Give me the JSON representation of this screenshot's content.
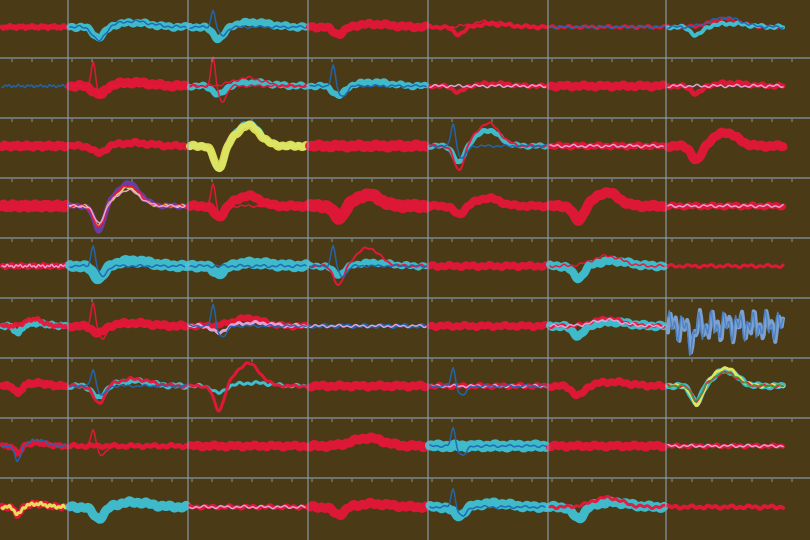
{
  "colors": {
    "background": "#4a3b16",
    "grid_line": "#8fa6bf",
    "tick": "#9fb4c9"
  },
  "grid": {
    "columns": 7,
    "rows": 9
  },
  "cells": [
    [
      {
        "p": [
          {
            "c": "#e8163a",
            "s": "flat",
            "a": 0.2,
            "w": 5
          },
          {
            "c": "#e8163a",
            "s": "flat",
            "a": 0.15,
            "w": 1.5
          }
        ]
      },
      {
        "p": [
          {
            "c": "#3ec5db",
            "s": "dip",
            "a": 0.45,
            "w": 7
          },
          {
            "c": "#1f66b3",
            "s": "dip",
            "a": 0.6,
            "w": 1.5
          }
        ]
      },
      {
        "p": [
          {
            "c": "#3ec5db",
            "s": "dip",
            "a": 0.5,
            "w": 7
          },
          {
            "c": "#1f66b3",
            "s": "spike",
            "a": 0.6,
            "w": 1.5
          }
        ]
      },
      {
        "p": [
          {
            "c": "#e8163a",
            "s": "dip",
            "a": 0.3,
            "w": 8
          }
        ]
      },
      {
        "p": [
          {
            "c": "#e8163a",
            "s": "dip",
            "a": 0.3,
            "w": 4
          },
          {
            "c": "#e8163a",
            "s": "hump",
            "a": 0.3,
            "w": 1.5
          }
        ]
      },
      {
        "p": [
          {
            "c": "#e8163a",
            "s": "flat",
            "a": 0.2,
            "w": 3
          },
          {
            "c": "#1f66b3",
            "s": "flat",
            "a": 0.15,
            "w": 1.5
          }
        ]
      },
      {
        "p": [
          {
            "c": "#e8163a",
            "s": "hump",
            "a": 0.4,
            "w": 3
          },
          {
            "c": "#3ec5db",
            "s": "dip",
            "a": 0.35,
            "w": 4
          },
          {
            "c": "#1f66b3",
            "s": "hump",
            "a": 0.5,
            "w": 1.5
          }
        ]
      }
    ],
    [
      {
        "p": [
          {
            "c": "#1f66b3",
            "s": "flat",
            "a": 0.2,
            "w": 1.5
          }
        ]
      },
      {
        "p": [
          {
            "c": "#e8163a",
            "s": "dip",
            "a": 0.35,
            "w": 9
          },
          {
            "c": "#e8163a",
            "s": "spike",
            "a": 0.8,
            "w": 1.5
          }
        ]
      },
      {
        "p": [
          {
            "c": "#3ec5db",
            "s": "dip",
            "a": 0.35,
            "w": 6
          },
          {
            "c": "#e8163a",
            "s": "spike",
            "a": 1.0,
            "w": 1.5
          },
          {
            "c": "#e8163a",
            "s": "hump",
            "a": 0.4,
            "w": 1.5
          }
        ]
      },
      {
        "p": [
          {
            "c": "#3ec5db",
            "s": "dip",
            "a": 0.4,
            "w": 6
          },
          {
            "c": "#1f66b3",
            "s": "spike",
            "a": 0.7,
            "w": 1.5
          }
        ]
      },
      {
        "p": [
          {
            "c": "#e8163a",
            "s": "dip",
            "a": 0.25,
            "w": 4
          },
          {
            "c": "#e6a6e0",
            "s": "flat",
            "a": 0.15,
            "w": 1.5
          }
        ]
      },
      {
        "p": [
          {
            "c": "#e8163a",
            "s": "flat",
            "a": 0.2,
            "w": 8
          }
        ]
      },
      {
        "p": [
          {
            "c": "#e8163a",
            "s": "dip",
            "a": 0.3,
            "w": 5
          },
          {
            "c": "#e6a6e0",
            "s": "flat",
            "a": 0.15,
            "w": 1.5
          }
        ]
      }
    ],
    [
      {
        "p": [
          {
            "c": "#e8163a",
            "s": "flat",
            "a": 0.2,
            "w": 8
          }
        ]
      },
      {
        "p": [
          {
            "c": "#e8163a",
            "s": "dip",
            "a": 0.3,
            "w": 7
          }
        ]
      },
      {
        "p": [
          {
            "c": "#3ec5db",
            "s": "wave",
            "a": 1.0,
            "w": 6
          },
          {
            "c": "#e8e85a",
            "s": "wave",
            "a": 0.9,
            "w": 8
          }
        ]
      },
      {
        "p": [
          {
            "c": "#e8163a",
            "s": "flat",
            "a": 0.25,
            "w": 10
          }
        ]
      },
      {
        "p": [
          {
            "c": "#3ec5db",
            "s": "wave",
            "a": 0.7,
            "w": 5
          },
          {
            "c": "#e8163a",
            "s": "wave",
            "a": 1.0,
            "w": 2
          },
          {
            "c": "#1f66b3",
            "s": "spike",
            "a": 0.8,
            "w": 1.5
          }
        ]
      },
      {
        "p": [
          {
            "c": "#e8163a",
            "s": "flat",
            "a": 0.2,
            "w": 6
          },
          {
            "c": "#e6a6e0",
            "s": "flat",
            "a": 0.15,
            "w": 1.5
          }
        ]
      },
      {
        "p": [
          {
            "c": "#e8163a",
            "s": "wave",
            "a": 0.6,
            "w": 9
          }
        ]
      }
    ],
    [
      {
        "p": [
          {
            "c": "#e8163a",
            "s": "flat",
            "a": 0.2,
            "w": 10
          }
        ]
      },
      {
        "p": [
          {
            "c": "#6a3fb0",
            "s": "wave",
            "a": 1.0,
            "w": 5
          },
          {
            "c": "#e8e85a",
            "s": "wave",
            "a": 0.8,
            "w": 2
          },
          {
            "c": "#e8163a",
            "s": "wave",
            "a": 0.9,
            "w": 2
          },
          {
            "c": "#e6a6e0",
            "s": "wave",
            "a": 0.7,
            "w": 1.5
          }
        ]
      },
      {
        "p": [
          {
            "c": "#e8163a",
            "s": "wave",
            "a": 0.45,
            "w": 9
          },
          {
            "c": "#e8163a",
            "s": "spike",
            "a": 0.8,
            "w": 1.5
          }
        ]
      },
      {
        "p": [
          {
            "c": "#e8163a",
            "s": "wave",
            "a": 0.5,
            "w": 12
          }
        ]
      },
      {
        "p": [
          {
            "c": "#e8163a",
            "s": "wave",
            "a": 0.35,
            "w": 8
          }
        ]
      },
      {
        "p": [
          {
            "c": "#e8163a",
            "s": "wave",
            "a": 0.6,
            "w": 10
          }
        ]
      },
      {
        "p": [
          {
            "c": "#e8163a",
            "s": "flat",
            "a": 0.25,
            "w": 6
          },
          {
            "c": "#e6a6e0",
            "s": "flat",
            "a": 0.15,
            "w": 1.5
          }
        ]
      }
    ],
    [
      {
        "p": [
          {
            "c": "#e8163a",
            "s": "flat",
            "a": 0.25,
            "w": 5
          },
          {
            "c": "#e6a6e0",
            "s": "flat",
            "a": 0.2,
            "w": 1.5
          }
        ]
      },
      {
        "p": [
          {
            "c": "#3ec5db",
            "s": "dip",
            "a": 0.5,
            "w": 10
          },
          {
            "c": "#1f66b3",
            "s": "spike",
            "a": 0.7,
            "w": 1.5
          }
        ]
      },
      {
        "p": [
          {
            "c": "#3ec5db",
            "s": "dip",
            "a": 0.3,
            "w": 10
          },
          {
            "c": "#1f66b3",
            "s": "flat",
            "a": 0.2,
            "w": 1.5
          }
        ]
      },
      {
        "p": [
          {
            "c": "#3ec5db",
            "s": "dip",
            "a": 0.35,
            "w": 6
          },
          {
            "c": "#e8163a",
            "s": "wave",
            "a": 0.8,
            "w": 2
          },
          {
            "c": "#1f66b3",
            "s": "spike",
            "a": 0.7,
            "w": 1.5
          }
        ]
      },
      {
        "p": [
          {
            "c": "#e8163a",
            "s": "flat",
            "a": 0.2,
            "w": 7
          }
        ]
      },
      {
        "p": [
          {
            "c": "#3ec5db",
            "s": "dip",
            "a": 0.5,
            "w": 8
          },
          {
            "c": "#e8163a",
            "s": "hump",
            "a": 0.5,
            "w": 1.5
          }
        ]
      },
      {
        "p": [
          {
            "c": "#e8163a",
            "s": "flat",
            "a": 0.2,
            "w": 3
          }
        ]
      }
    ],
    [
      {
        "p": [
          {
            "c": "#3ec5db",
            "s": "dip",
            "a": 0.3,
            "w": 6
          },
          {
            "c": "#e8163a",
            "s": "hump",
            "a": 0.35,
            "w": 4
          }
        ]
      },
      {
        "p": [
          {
            "c": "#e8163a",
            "s": "dip",
            "a": 0.3,
            "w": 8
          },
          {
            "c": "#e8163a",
            "s": "spike",
            "a": 0.8,
            "w": 1.5
          }
        ]
      },
      {
        "p": [
          {
            "c": "#e8163a",
            "s": "hump",
            "a": 0.4,
            "w": 6
          },
          {
            "c": "#e6a6e0",
            "s": "dip",
            "a": 0.3,
            "w": 3
          },
          {
            "c": "#1f66b3",
            "s": "spike",
            "a": 0.7,
            "w": 1.5
          }
        ]
      },
      {
        "p": [
          {
            "c": "#1f66b3",
            "s": "flat",
            "a": 0.2,
            "w": 3
          },
          {
            "c": "#e6a6e0",
            "s": "flat",
            "a": 0.15,
            "w": 1.5
          }
        ]
      },
      {
        "p": [
          {
            "c": "#e8163a",
            "s": "flat",
            "a": 0.2,
            "w": 7
          }
        ]
      },
      {
        "p": [
          {
            "c": "#3ec5db",
            "s": "dip",
            "a": 0.4,
            "w": 8
          },
          {
            "c": "#e8163a",
            "s": "hump",
            "a": 0.4,
            "w": 3
          },
          {
            "c": "#e6a6e0",
            "s": "hump",
            "a": 0.3,
            "w": 1.5
          }
        ]
      },
      {
        "p": [
          {
            "c": "#7fa6d8",
            "s": "noisy",
            "a": 0.5,
            "w": 4
          },
          {
            "c": "#4a7fc4",
            "s": "noisy",
            "a": 0.6,
            "w": 1.5
          }
        ]
      }
    ],
    [
      {
        "p": [
          {
            "c": "#e8163a",
            "s": "dip",
            "a": 0.3,
            "w": 7
          }
        ]
      },
      {
        "p": [
          {
            "c": "#3ec5db",
            "s": "dip",
            "a": 0.5,
            "w": 5
          },
          {
            "c": "#e8163a",
            "s": "dip",
            "a": 0.7,
            "w": 3
          },
          {
            "c": "#1f66b3",
            "s": "spike",
            "a": 0.6,
            "w": 1.5
          }
        ]
      },
      {
        "p": [
          {
            "c": "#3ec5db",
            "s": "dip",
            "a": 0.3,
            "w": 3
          },
          {
            "c": "#e8163a",
            "s": "wave",
            "a": 1.0,
            "w": 3
          }
        ]
      },
      {
        "p": [
          {
            "c": "#e8163a",
            "s": "flat",
            "a": 0.2,
            "w": 8
          }
        ]
      },
      {
        "p": [
          {
            "c": "#e8163a",
            "s": "flat",
            "a": 0.2,
            "w": 5
          },
          {
            "c": "#e6a6e0",
            "s": "flat",
            "a": 0.15,
            "w": 1.5
          },
          {
            "c": "#1f66b3",
            "s": "spike",
            "a": 0.6,
            "w": 1.5
          }
        ]
      },
      {
        "p": [
          {
            "c": "#e8163a",
            "s": "dip",
            "a": 0.4,
            "w": 7
          }
        ]
      },
      {
        "p": [
          {
            "c": "#3ec5db",
            "s": "wave",
            "a": 0.7,
            "w": 6
          },
          {
            "c": "#e8e85a",
            "s": "wave",
            "a": 0.8,
            "w": 3
          },
          {
            "c": "#e8163a",
            "s": "wave",
            "a": 0.6,
            "w": 2
          },
          {
            "c": "#3aa040",
            "s": "wave",
            "a": 0.6,
            "w": 1.5
          }
        ]
      }
    ],
    [
      {
        "p": [
          {
            "c": "#e8163a",
            "s": "dip",
            "a": 0.3,
            "w": 5
          },
          {
            "c": "#1f66b3",
            "s": "dip",
            "a": 0.6,
            "w": 1.5
          }
        ]
      },
      {
        "p": [
          {
            "c": "#e8163a",
            "s": "flat",
            "a": 0.2,
            "w": 5
          },
          {
            "c": "#e8163a",
            "s": "spike",
            "a": 0.6,
            "w": 1.5
          }
        ]
      },
      {
        "p": [
          {
            "c": "#e8163a",
            "s": "flat",
            "a": 0.2,
            "w": 8
          }
        ]
      },
      {
        "p": [
          {
            "c": "#e8163a",
            "s": "hump",
            "a": 0.4,
            "w": 9
          }
        ]
      },
      {
        "p": [
          {
            "c": "#3ec5db",
            "s": "flat",
            "a": 0.25,
            "w": 10
          },
          {
            "c": "#1f66b3",
            "s": "spike",
            "a": 0.6,
            "w": 1.5
          }
        ]
      },
      {
        "p": [
          {
            "c": "#e8163a",
            "s": "flat",
            "a": 0.2,
            "w": 8
          }
        ]
      },
      {
        "p": [
          {
            "c": "#e8163a",
            "s": "flat",
            "a": 0.2,
            "w": 4
          },
          {
            "c": "#e6a6e0",
            "s": "flat",
            "a": 0.15,
            "w": 1.5
          }
        ]
      }
    ],
    [
      {
        "p": [
          {
            "c": "#e8163a",
            "s": "dip",
            "a": 0.3,
            "w": 6
          },
          {
            "c": "#e8e85a",
            "s": "dip",
            "a": 0.3,
            "w": 3
          }
        ]
      },
      {
        "p": [
          {
            "c": "#3ec5db",
            "s": "dip",
            "a": 0.45,
            "w": 9
          }
        ]
      },
      {
        "p": [
          {
            "c": "#e8163a",
            "s": "flat",
            "a": 0.2,
            "w": 4
          },
          {
            "c": "#e6a6e0",
            "s": "flat",
            "a": 0.15,
            "w": 1.5
          }
        ]
      },
      {
        "p": [
          {
            "c": "#e8163a",
            "s": "dip",
            "a": 0.3,
            "w": 9
          }
        ]
      },
      {
        "p": [
          {
            "c": "#3ec5db",
            "s": "dip",
            "a": 0.35,
            "w": 9
          },
          {
            "c": "#1f66b3",
            "s": "spike",
            "a": 0.6,
            "w": 1.5
          }
        ]
      },
      {
        "p": [
          {
            "c": "#3ec5db",
            "s": "dip",
            "a": 0.45,
            "w": 9
          },
          {
            "c": "#e8163a",
            "s": "hump",
            "a": 0.45,
            "w": 3
          }
        ]
      },
      {
        "p": [
          {
            "c": "#e8163a",
            "s": "flat",
            "a": 0.2,
            "w": 4
          }
        ]
      }
    ]
  ]
}
